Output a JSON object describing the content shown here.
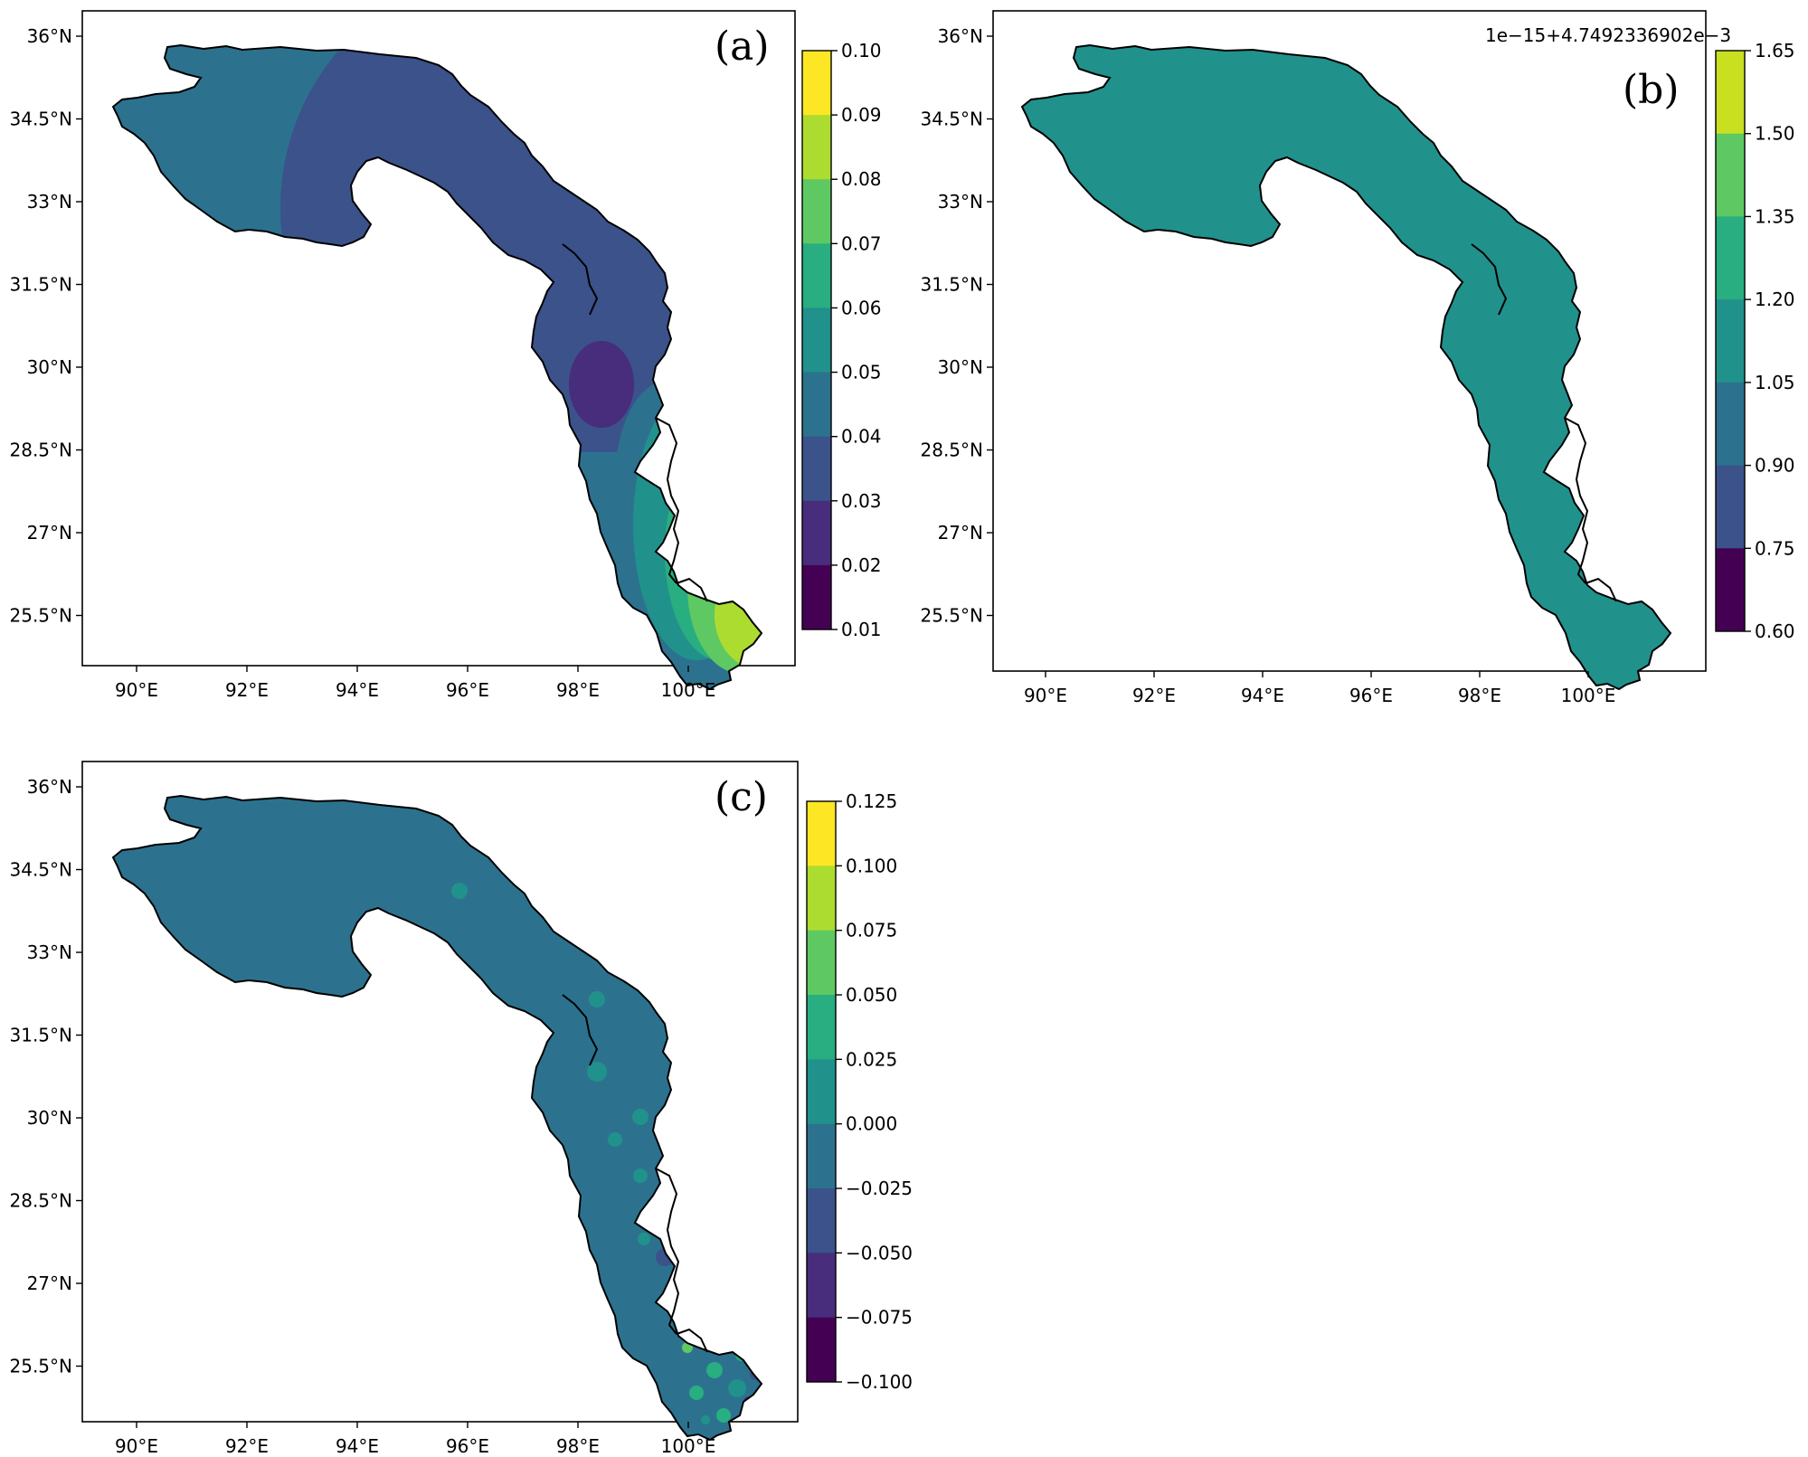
{
  "colormap": [
    "#440154",
    "#472d7b",
    "#3b528b",
    "#2c728e",
    "#21918c",
    "#28ae80",
    "#5ec962",
    "#addc30",
    "#fde725"
  ],
  "panels": [
    {
      "label": "(a)",
      "x_ticks": [
        "90°E",
        "92°E",
        "94°E",
        "96°E",
        "98°E",
        "100°E"
      ],
      "y_ticks": [
        "36°N",
        "34.5°N",
        "33°N",
        "31.5°N",
        "30°N",
        "28.5°N",
        "27°N",
        "25.5°N"
      ],
      "colorbar_ticks": [
        "0.10",
        "0.09",
        "0.08",
        "0.07",
        "0.06",
        "0.05",
        "0.04",
        "0.03",
        "0.02",
        "0.01"
      ],
      "colorbar_offset": ""
    },
    {
      "label": "(b)",
      "x_ticks": [
        "90°E",
        "92°E",
        "94°E",
        "96°E",
        "98°E",
        "100°E"
      ],
      "y_ticks": [
        "36°N",
        "34.5°N",
        "33°N",
        "31.5°N",
        "30°N",
        "28.5°N",
        "27°N",
        "25.5°N"
      ],
      "colorbar_ticks": [
        "1.65",
        "1.50",
        "1.35",
        "1.20",
        "1.05",
        "0.90",
        "0.75",
        "0.60"
      ],
      "colorbar_offset": "1e−15+4.7492336902e−3"
    },
    {
      "label": "(c)",
      "x_ticks": [
        "90°E",
        "92°E",
        "94°E",
        "96°E",
        "98°E",
        "100°E"
      ],
      "y_ticks": [
        "36°N",
        "34.5°N",
        "33°N",
        "31.5°N",
        "30°N",
        "28.5°N",
        "27°N",
        "25.5°N"
      ],
      "colorbar_ticks": [
        "0.125",
        "0.100",
        "0.075",
        "0.050",
        "0.025",
        "0.000",
        "−0.025",
        "−0.050",
        "−0.075",
        "−0.100"
      ],
      "colorbar_offset": ""
    }
  ]
}
